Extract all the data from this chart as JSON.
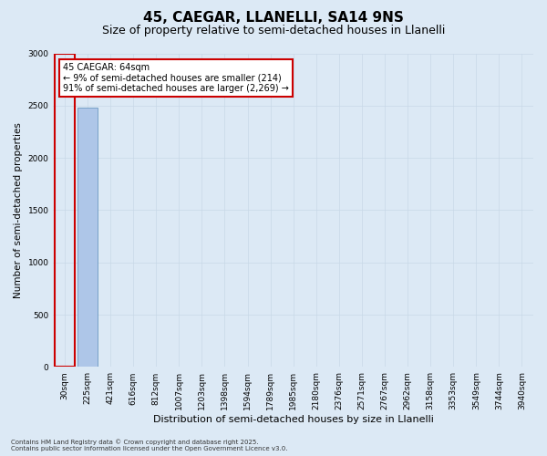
{
  "title": "45, CAEGAR, LLANELLI, SA14 9NS",
  "subtitle": "Size of property relative to semi-detached houses in Llanelli",
  "xlabel": "Distribution of semi-detached houses by size in Llanelli",
  "ylabel": "Number of semi-detached properties",
  "annotation_line1": "45 CAEGAR: 64sqm",
  "annotation_line2": "← 9% of semi-detached houses are smaller (214)",
  "annotation_line3": "91% of semi-detached houses are larger (2,269) →",
  "footer_line1": "Contains HM Land Registry data © Crown copyright and database right 2025.",
  "footer_line2": "Contains public sector information licensed under the Open Government Licence v3.0.",
  "bin_labels": [
    "30sqm",
    "225sqm",
    "421sqm",
    "616sqm",
    "812sqm",
    "1007sqm",
    "1203sqm",
    "1398sqm",
    "1594sqm",
    "1789sqm",
    "1985sqm",
    "2180sqm",
    "2376sqm",
    "2571sqm",
    "2767sqm",
    "2962sqm",
    "3158sqm",
    "3353sqm",
    "3549sqm",
    "3744sqm",
    "3940sqm"
  ],
  "bar_heights": [
    7,
    2483,
    0,
    0,
    0,
    0,
    0,
    0,
    0,
    0,
    0,
    0,
    0,
    0,
    0,
    0,
    0,
    0,
    0,
    0,
    0
  ],
  "bar_color": "#aec6e8",
  "bar_edge_color": "#5b8db8",
  "highlight_bar_index": 0,
  "highlight_edge_color": "#cc0000",
  "annotation_box_color": "#ffffff",
  "annotation_box_edge": "#cc0000",
  "ylim": [
    0,
    3000
  ],
  "yticks": [
    0,
    500,
    1000,
    1500,
    2000,
    2500,
    3000
  ],
  "grid_color": "#c8d8e8",
  "bg_color": "#dce9f5",
  "title_fontsize": 11,
  "subtitle_fontsize": 9,
  "tick_fontsize": 6.5,
  "ylabel_fontsize": 7.5,
  "xlabel_fontsize": 8,
  "annotation_fontsize": 7,
  "footer_fontsize": 5
}
